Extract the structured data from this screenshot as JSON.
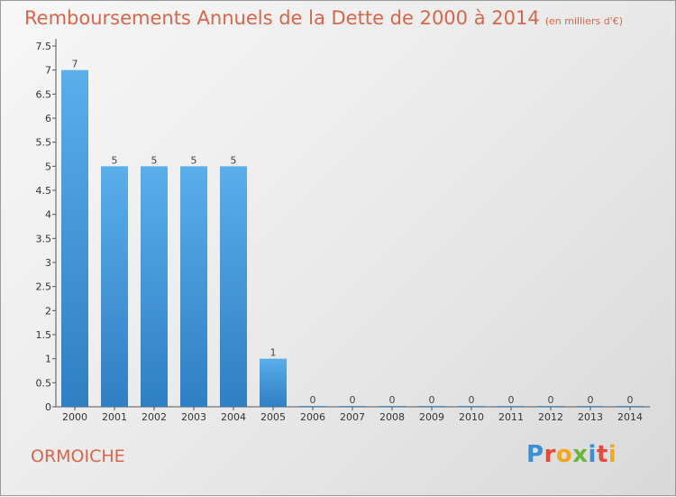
{
  "chart_data": {
    "type": "bar",
    "title": "Remboursements Annuels de la Dette de 2000 à 2014",
    "subtitle": "(en milliers d'€)",
    "categories": [
      "2000",
      "2001",
      "2002",
      "2003",
      "2004",
      "2005",
      "2006",
      "2007",
      "2008",
      "2009",
      "2010",
      "2011",
      "2012",
      "2013",
      "2014"
    ],
    "values": [
      7,
      5,
      5,
      5,
      5,
      1,
      0,
      0,
      0,
      0,
      0,
      0,
      0,
      0,
      0
    ],
    "data_labels": [
      "7",
      "5",
      "5",
      "5",
      "5",
      "1",
      "0",
      "0",
      "0",
      "0",
      "0",
      "0",
      "0",
      "0",
      "0"
    ],
    "ylim": [
      0,
      7.5
    ],
    "yticks": [
      "0",
      "0.5",
      "1",
      "1.5",
      "2",
      "2.5",
      "3",
      "3.5",
      "4",
      "4.5",
      "5",
      "5.5",
      "6",
      "6.5",
      "7",
      "7.5"
    ],
    "xlabel": "",
    "ylabel": "",
    "grid": false,
    "bar_color": "#3f97dd"
  },
  "commune": "ORMOICHE",
  "logo": {
    "text": "Proxiti"
  }
}
